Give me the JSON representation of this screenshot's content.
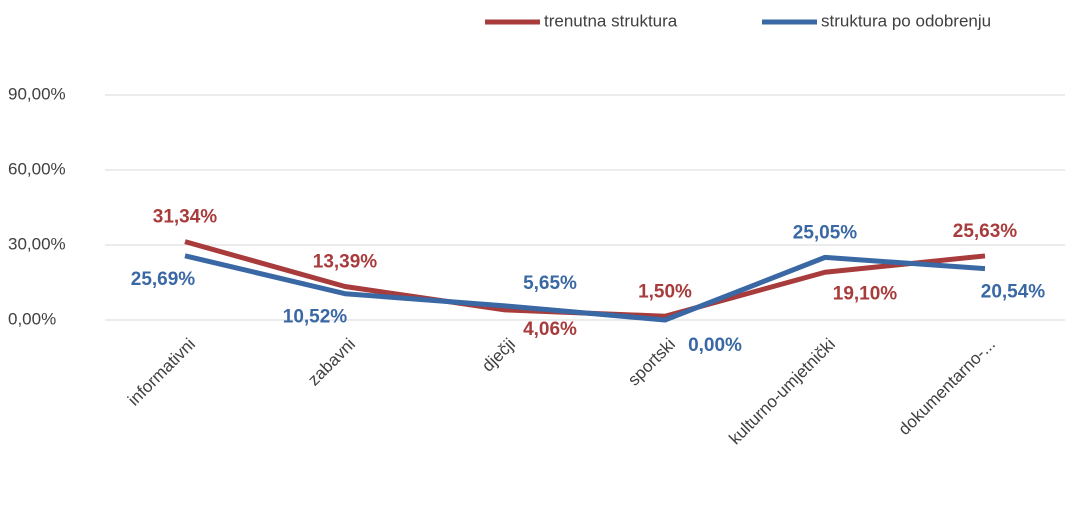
{
  "chart_data": {
    "type": "line",
    "categories": [
      "informativni",
      "zabavni",
      "dječji",
      "sportski",
      "kulturno-umjetnički",
      "dokumentarno-..."
    ],
    "series": [
      {
        "name": "trenutna struktura",
        "color": "#a83b3b",
        "values": [
          31.34,
          13.39,
          4.06,
          1.5,
          19.1,
          25.63
        ],
        "value_labels": [
          "31,34%",
          "13,39%",
          "4,06%",
          "1,50%",
          "19,10%",
          "25,63%"
        ]
      },
      {
        "name": "struktura po odobrenju",
        "color": "#3a68a4",
        "values": [
          25.69,
          10.52,
          5.65,
          0,
          25.05,
          20.54
        ],
        "value_labels": [
          "25,69%",
          "10,52%",
          "5,65%",
          "0,00%",
          "25,05%",
          "20,54%"
        ]
      }
    ],
    "ylim": [
      0,
      90
    ],
    "yticks": [
      {
        "value": 0,
        "label": "0,00%"
      },
      {
        "value": 30,
        "label": "30,00%"
      },
      {
        "value": 60,
        "label": "60,00%"
      },
      {
        "value": 90,
        "label": "90,00%"
      }
    ],
    "grid": true,
    "legend": "top-right"
  }
}
